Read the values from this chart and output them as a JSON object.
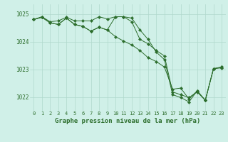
{
  "title": "Graphe pression niveau de la mer (hPa)",
  "bg_color": "#d0f0e8",
  "grid_color": "#b0d8cc",
  "line_color": "#2d6e2d",
  "marker_color": "#2d6e2d",
  "xlim": [
    -0.5,
    23.5
  ],
  "ylim": [
    1021.5,
    1025.35
  ],
  "yticks": [
    1022,
    1023,
    1024,
    1025
  ],
  "xticks": [
    0,
    1,
    2,
    3,
    4,
    5,
    6,
    7,
    8,
    9,
    10,
    11,
    12,
    13,
    14,
    15,
    16,
    17,
    18,
    19,
    20,
    21,
    22,
    23
  ],
  "line1_x": [
    0,
    1,
    2,
    3,
    4,
    5,
    6,
    7,
    8,
    9,
    10,
    11,
    12,
    13,
    14,
    15,
    16,
    17,
    18,
    19,
    20,
    21,
    22,
    23
  ],
  "line1_y": [
    1024.8,
    1024.9,
    1024.72,
    1024.75,
    1024.88,
    1024.75,
    1024.75,
    1024.75,
    1024.9,
    1024.82,
    1024.9,
    1024.9,
    1024.85,
    1024.42,
    1024.08,
    1023.62,
    1023.35,
    1022.08,
    1021.98,
    1021.82,
    1022.22,
    1021.88,
    1023.02,
    1023.05
  ],
  "line2_x": [
    0,
    1,
    2,
    3,
    4,
    5,
    6,
    7,
    8,
    9,
    10,
    11,
    12,
    13,
    14,
    15,
    16,
    17,
    18,
    19,
    20,
    21,
    22,
    23
  ],
  "line2_y": [
    1024.8,
    1024.88,
    1024.68,
    1024.62,
    1024.85,
    1024.62,
    1024.55,
    1024.38,
    1024.52,
    1024.42,
    1024.9,
    1024.9,
    1024.72,
    1024.08,
    1023.92,
    1023.68,
    1023.48,
    1022.18,
    1022.08,
    1021.98,
    1022.18,
    1021.88,
    1023.02,
    1023.08
  ],
  "line3_x": [
    0,
    1,
    2,
    3,
    4,
    5,
    6,
    7,
    8,
    9,
    10,
    11,
    12,
    13,
    14,
    15,
    16,
    17,
    18,
    19,
    20,
    21,
    22,
    23
  ],
  "line3_y": [
    1024.8,
    1024.88,
    1024.68,
    1024.62,
    1024.85,
    1024.62,
    1024.55,
    1024.38,
    1024.52,
    1024.42,
    1024.18,
    1024.02,
    1023.88,
    1023.68,
    1023.42,
    1023.28,
    1023.08,
    1022.28,
    1022.32,
    1021.92,
    1022.22,
    1021.88,
    1023.02,
    1023.08
  ]
}
